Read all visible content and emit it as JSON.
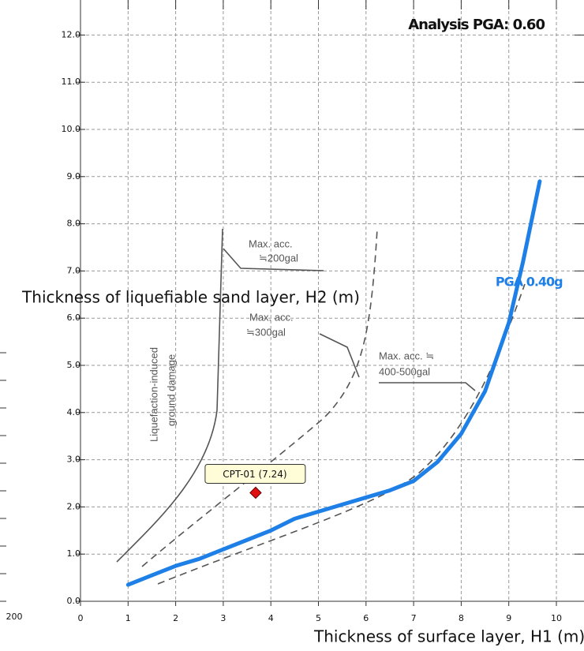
{
  "chart_data": {
    "type": "line",
    "annotation": "Analysis PGA: 0.60",
    "x_label": "Thickness of surface layer, H1 (m)",
    "y_label": "Thickness of liquefiable sand layer, H2 (m)",
    "left_axis_label": "200",
    "xlim": [
      0,
      10
    ],
    "ylim": [
      0,
      12.6
    ],
    "grid": true,
    "xticks": [
      0,
      1,
      2,
      3,
      4,
      5,
      6,
      7,
      8,
      9,
      10
    ],
    "yticks": [
      {
        "value": 0,
        "label": "0.0"
      },
      {
        "value": 1,
        "label": "1.0"
      },
      {
        "value": 2,
        "label": "2.0"
      },
      {
        "value": 3,
        "label": "3.0"
      },
      {
        "value": 4,
        "label": "4.0"
      },
      {
        "value": 5,
        "label": "5.0"
      },
      {
        "value": 6,
        "label": "6.0"
      },
      {
        "value": 7,
        "label": "7.0"
      },
      {
        "value": 8,
        "label": "8.0"
      },
      {
        "value": 9,
        "label": "9.0"
      },
      {
        "value": 10,
        "label": "10.0"
      },
      {
        "value": 11,
        "label": "11.0"
      },
      {
        "value": 12,
        "label": "12.0"
      }
    ],
    "series": [
      {
        "name": "PGA 0.40g",
        "color": "#1e80e6",
        "x": [
          1.0,
          1.5,
          2.0,
          2.5,
          3.0,
          3.5,
          4.0,
          4.5,
          5.0,
          5.5,
          6.0,
          6.5,
          7.0,
          7.5,
          8.0,
          8.5,
          9.0,
          9.3,
          9.65
        ],
        "values": [
          0.35,
          0.55,
          0.75,
          0.9,
          1.1,
          1.3,
          1.5,
          1.75,
          1.9,
          2.05,
          2.2,
          2.35,
          2.55,
          2.95,
          3.55,
          4.45,
          5.9,
          7.2,
          8.9
        ]
      }
    ],
    "points": [
      {
        "label": "CPT-01 (7.24)",
        "x": 3.68,
        "y": 2.3,
        "color": "#e01010"
      }
    ],
    "image_labels": [
      "Max. acc.",
      "≒200gal",
      "Max. acc.",
      "≒300gal",
      "Max. acc. ≒",
      "400-500gal",
      "Liquefaction-induced",
      "ground damage"
    ]
  }
}
